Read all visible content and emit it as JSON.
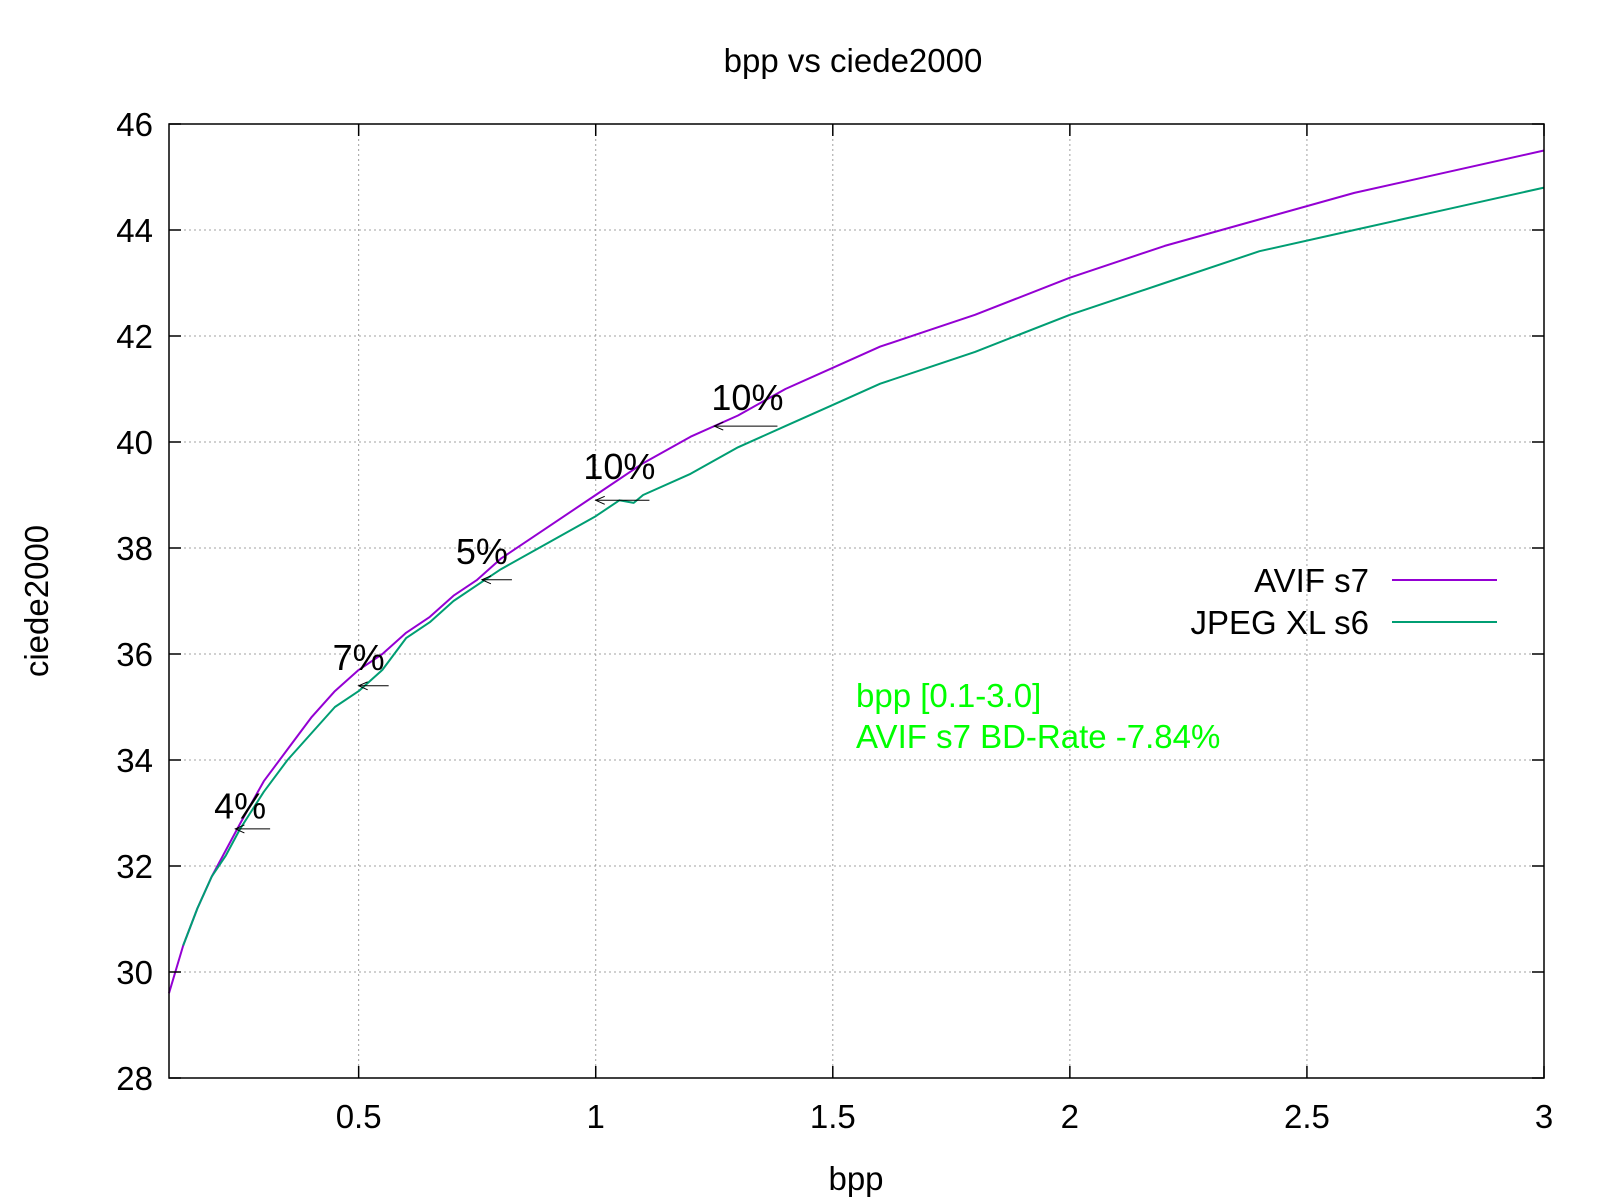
{
  "chart_data": {
    "type": "line",
    "title": "bpp vs ciede2000",
    "xlabel": "bpp",
    "ylabel": "ciede2000",
    "xlim": [
      0.1,
      3.0
    ],
    "ylim": [
      28,
      46
    ],
    "xticks": [
      0.5,
      1,
      1.5,
      2,
      2.5,
      3
    ],
    "xtick_labels": [
      "0.5",
      "1",
      "1.5",
      "2",
      "2.5",
      "3"
    ],
    "yticks": [
      28,
      30,
      32,
      34,
      36,
      38,
      40,
      42,
      44,
      46
    ],
    "ytick_labels": [
      "28",
      "30",
      "32",
      "34",
      "36",
      "38",
      "40",
      "42",
      "44",
      "46"
    ],
    "grid": true,
    "legend_position": "right",
    "series": [
      {
        "name": "AVIF s7",
        "color": "#9400d3",
        "x": [
          0.1,
          0.13,
          0.16,
          0.19,
          0.22,
          0.25,
          0.3,
          0.35,
          0.4,
          0.45,
          0.5,
          0.55,
          0.6,
          0.65,
          0.7,
          0.75,
          0.8,
          0.9,
          1.0,
          1.1,
          1.2,
          1.3,
          1.4,
          1.5,
          1.6,
          1.7,
          1.8,
          2.0,
          2.2,
          2.4,
          2.6,
          2.8,
          3.0
        ],
        "y": [
          29.6,
          30.5,
          31.2,
          31.8,
          32.3,
          32.8,
          33.6,
          34.2,
          34.8,
          35.3,
          35.7,
          36.0,
          36.4,
          36.7,
          37.1,
          37.4,
          37.8,
          38.4,
          39.0,
          39.6,
          40.1,
          40.5,
          41.0,
          41.4,
          41.8,
          42.1,
          42.4,
          43.1,
          43.7,
          44.2,
          44.7,
          45.1,
          45.5
        ]
      },
      {
        "name": "JPEG XL s6",
        "color": "#009e73",
        "x": [
          0.13,
          0.16,
          0.19,
          0.22,
          0.25,
          0.3,
          0.35,
          0.4,
          0.45,
          0.5,
          0.55,
          0.6,
          0.65,
          0.7,
          0.75,
          0.8,
          0.9,
          1.0,
          1.05,
          1.08,
          1.1,
          1.2,
          1.3,
          1.4,
          1.5,
          1.6,
          1.7,
          1.8,
          2.0,
          2.2,
          2.4,
          2.6,
          2.8,
          3.0
        ],
        "y": [
          30.5,
          31.2,
          31.8,
          32.2,
          32.7,
          33.4,
          34.0,
          34.5,
          35.0,
          35.3,
          35.7,
          36.3,
          36.6,
          37.0,
          37.3,
          37.6,
          38.1,
          38.6,
          38.9,
          38.85,
          39.0,
          39.4,
          39.9,
          40.3,
          40.7,
          41.1,
          41.4,
          41.7,
          42.4,
          43.0,
          43.6,
          44.0,
          44.4,
          44.8
        ]
      }
    ],
    "annotations": [
      {
        "text": "4%",
        "x": 0.25,
        "y": 32.9,
        "arrow_to_x": 0.24,
        "arrow_y": 32.7
      },
      {
        "text": "7%",
        "x": 0.5,
        "y": 35.7,
        "arrow_to_x": 0.5,
        "arrow_y": 35.4
      },
      {
        "text": "5%",
        "x": 0.76,
        "y": 37.7,
        "arrow_to_x": 0.76,
        "arrow_y": 37.4
      },
      {
        "text": "10%",
        "x": 1.05,
        "y": 39.3,
        "arrow_to_x": 1.0,
        "arrow_y": 38.9
      },
      {
        "text": "10%",
        "x": 1.32,
        "y": 40.6,
        "arrow_to_x": 1.25,
        "arrow_y": 40.3
      }
    ],
    "notes": {
      "color": "#00ff00",
      "lines": [
        "bpp [0.1-3.0]",
        "AVIF s7 BD-Rate -7.84%"
      ]
    }
  }
}
